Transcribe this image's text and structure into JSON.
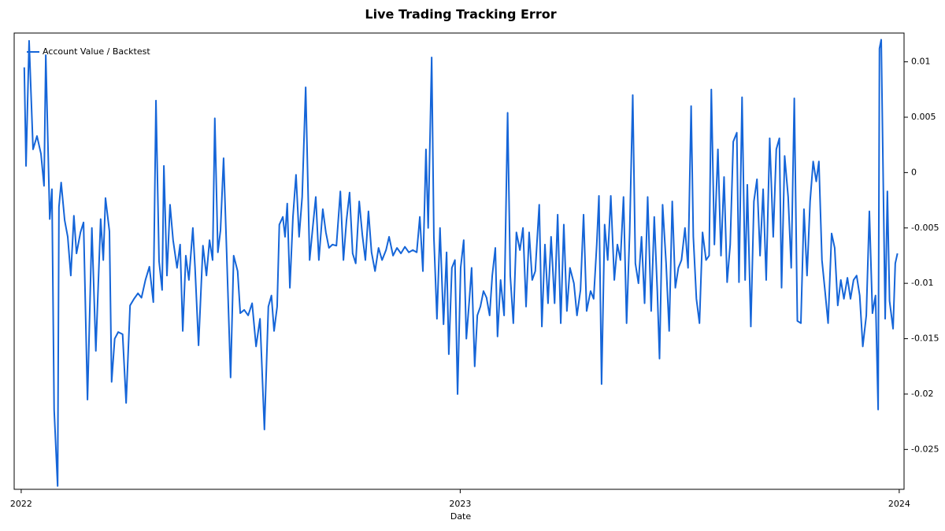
{
  "chart_data": {
    "type": "line",
    "title": "Live Trading Tracking Error",
    "xlabel": "Date",
    "x": [
      2022.007,
      2022.011,
      2022.018,
      2022.027,
      2022.036,
      2022.045,
      2022.052,
      2022.056,
      2022.065,
      2022.07,
      2022.075,
      2022.083,
      2022.086,
      2022.091,
      2022.099,
      2022.106,
      2022.113,
      2022.12,
      2022.126,
      2022.135,
      2022.142,
      2022.151,
      2022.161,
      2022.17,
      2022.181,
      2022.187,
      2022.192,
      2022.201,
      2022.206,
      2022.213,
      2022.221,
      2022.231,
      2022.239,
      2022.248,
      2022.257,
      2022.266,
      2022.274,
      2022.283,
      2022.292,
      2022.301,
      2022.307,
      2022.314,
      2022.321,
      2022.325,
      2022.332,
      2022.339,
      2022.346,
      2022.355,
      2022.362,
      2022.368,
      2022.375,
      2022.382,
      2022.391,
      2022.396,
      2022.404,
      2022.414,
      2022.422,
      2022.429,
      2022.436,
      2022.441,
      2022.448,
      2022.454,
      2022.461,
      2022.468,
      2022.477,
      2022.484,
      2022.493,
      2022.499,
      2022.508,
      2022.517,
      2022.526,
      2022.535,
      2022.544,
      2022.554,
      2022.563,
      2022.57,
      2022.576,
      2022.583,
      2022.588,
      2022.596,
      2022.601,
      2022.606,
      2022.612,
      2022.619,
      2022.626,
      2022.633,
      2022.64,
      2022.648,
      2022.657,
      2022.664,
      2022.671,
      2022.678,
      2022.687,
      2022.694,
      2022.701,
      2022.709,
      2022.718,
      2022.727,
      2022.734,
      2022.741,
      2022.748,
      2022.755,
      2022.762,
      2022.77,
      2022.777,
      2022.784,
      2022.791,
      2022.798,
      2022.806,
      2022.814,
      2022.822,
      2022.831,
      2022.838,
      2022.847,
      2022.856,
      2022.865,
      2022.874,
      2022.883,
      2022.892,
      2022.901,
      2022.908,
      2022.915,
      2022.922,
      2022.927,
      2022.935,
      2022.94,
      2022.947,
      2022.954,
      2022.962,
      2022.969,
      2022.974,
      2022.981,
      2022.988,
      2022.994,
      2023.001,
      2023.008,
      2023.014,
      2023.021,
      2023.026,
      2023.033,
      2023.039,
      2023.046,
      2023.053,
      2023.06,
      2023.067,
      2023.073,
      2023.08,
      2023.085,
      2023.092,
      2023.1,
      2023.108,
      2023.114,
      2023.121,
      2023.128,
      2023.136,
      2023.143,
      2023.15,
      2023.157,
      2023.164,
      2023.171,
      2023.18,
      2023.186,
      2023.193,
      2023.2,
      2023.207,
      2023.215,
      2023.222,
      2023.229,
      2023.236,
      2023.243,
      2023.25,
      2023.259,
      2023.266,
      2023.274,
      2023.281,
      2023.288,
      2023.297,
      2023.304,
      2023.311,
      2023.316,
      2023.322,
      2023.329,
      2023.336,
      2023.343,
      2023.351,
      2023.358,
      2023.365,
      2023.372,
      2023.379,
      2023.386,
      2023.393,
      2023.399,
      2023.406,
      2023.413,
      2023.42,
      2023.427,
      2023.435,
      2023.442,
      2023.449,
      2023.454,
      2023.461,
      2023.469,
      2023.476,
      2023.483,
      2023.49,
      2023.497,
      2023.504,
      2023.512,
      2023.519,
      2023.526,
      2023.531,
      2023.538,
      2023.545,
      2023.552,
      2023.56,
      2023.567,
      2023.572,
      2023.579,
      2023.587,
      2023.594,
      2023.601,
      2023.608,
      2023.615,
      2023.622,
      2023.63,
      2023.635,
      2023.642,
      2023.649,
      2023.654,
      2023.662,
      2023.669,
      2023.676,
      2023.683,
      2023.69,
      2023.697,
      2023.705,
      2023.713,
      2023.72,
      2023.727,
      2023.732,
      2023.739,
      2023.747,
      2023.754,
      2023.761,
      2023.768,
      2023.776,
      2023.783,
      2023.79,
      2023.797,
      2023.804,
      2023.811,
      2023.817,
      2023.824,
      2023.831,
      2023.838,
      2023.846,
      2023.853,
      2023.86,
      2023.867,
      2023.874,
      2023.882,
      2023.889,
      2023.896,
      2023.903,
      2023.91,
      2023.917,
      2023.925,
      2023.932,
      2023.939,
      2023.946,
      2023.952,
      2023.955,
      2023.959,
      2023.968,
      2023.973,
      2023.978,
      2023.986,
      2023.991,
      2023.996
    ],
    "series": [
      {
        "name": "Account Value / Backtest",
        "color": "#1565d8",
        "values": [
          0.0095,
          0.0006,
          0.0119,
          0.0021,
          0.0033,
          0.0017,
          -0.0012,
          0.0106,
          -0.0042,
          -0.0015,
          -0.0214,
          -0.0283,
          -0.0031,
          -0.0009,
          -0.0043,
          -0.0058,
          -0.0093,
          -0.0039,
          -0.0073,
          -0.0054,
          -0.0045,
          -0.0205,
          -0.005,
          -0.0161,
          -0.0042,
          -0.0079,
          -0.0023,
          -0.0053,
          -0.0189,
          -0.015,
          -0.0144,
          -0.0146,
          -0.0208,
          -0.012,
          -0.0114,
          -0.0109,
          -0.0113,
          -0.0097,
          -0.0085,
          -0.0117,
          0.0065,
          -0.008,
          -0.0106,
          0.0006,
          -0.0093,
          -0.0029,
          -0.0061,
          -0.0086,
          -0.0065,
          -0.0143,
          -0.0075,
          -0.0097,
          -0.005,
          -0.0086,
          -0.0156,
          -0.0066,
          -0.0093,
          -0.0061,
          -0.0079,
          0.0049,
          -0.0072,
          -0.0052,
          0.0013,
          -0.0072,
          -0.0185,
          -0.0075,
          -0.0089,
          -0.0127,
          -0.0124,
          -0.0129,
          -0.0118,
          -0.0157,
          -0.0132,
          -0.0232,
          -0.0121,
          -0.0111,
          -0.0143,
          -0.0121,
          -0.0047,
          -0.004,
          -0.0058,
          -0.0028,
          -0.0104,
          -0.004,
          -0.0002,
          -0.0058,
          -0.0022,
          0.0077,
          -0.0079,
          -0.005,
          -0.0022,
          -0.0079,
          -0.0033,
          -0.0054,
          -0.0068,
          -0.0065,
          -0.0066,
          -0.0017,
          -0.0079,
          -0.0043,
          -0.0018,
          -0.0073,
          -0.0082,
          -0.0026,
          -0.0056,
          -0.0079,
          -0.0035,
          -0.0072,
          -0.0089,
          -0.0068,
          -0.0079,
          -0.007,
          -0.0058,
          -0.0075,
          -0.0068,
          -0.0073,
          -0.0067,
          -0.0072,
          -0.007,
          -0.0072,
          -0.004,
          -0.0089,
          0.0021,
          -0.005,
          0.0104,
          -0.0058,
          -0.0132,
          -0.005,
          -0.0137,
          -0.0072,
          -0.0164,
          -0.0086,
          -0.0079,
          -0.02,
          -0.0086,
          -0.0061,
          -0.015,
          -0.0114,
          -0.0086,
          -0.0175,
          -0.0129,
          -0.0121,
          -0.0107,
          -0.0113,
          -0.0129,
          -0.0093,
          -0.0068,
          -0.0148,
          -0.0097,
          -0.0129,
          0.0054,
          -0.0093,
          -0.0136,
          -0.0054,
          -0.007,
          -0.005,
          -0.0121,
          -0.0054,
          -0.0097,
          -0.0089,
          -0.0029,
          -0.0139,
          -0.0065,
          -0.0118,
          -0.0058,
          -0.0118,
          -0.0038,
          -0.0136,
          -0.0047,
          -0.0125,
          -0.0086,
          -0.01,
          -0.0129,
          -0.0106,
          -0.0038,
          -0.0125,
          -0.0107,
          -0.0114,
          -0.0065,
          -0.0021,
          -0.0191,
          -0.0047,
          -0.0079,
          -0.0021,
          -0.0097,
          -0.0065,
          -0.0079,
          -0.0022,
          -0.0136,
          -0.0054,
          0.007,
          -0.0082,
          -0.01,
          -0.0058,
          -0.0118,
          -0.0022,
          -0.0125,
          -0.004,
          -0.0107,
          -0.0168,
          -0.0029,
          -0.0082,
          -0.0143,
          -0.0026,
          -0.0104,
          -0.0086,
          -0.0079,
          -0.005,
          -0.0086,
          0.006,
          -0.0058,
          -0.0114,
          -0.0136,
          -0.0054,
          -0.0079,
          -0.0075,
          0.0075,
          -0.0065,
          0.0021,
          -0.0075,
          -0.0004,
          -0.0099,
          -0.0065,
          0.0028,
          0.0036,
          -0.0099,
          0.0068,
          -0.0097,
          -0.0011,
          -0.0139,
          -0.0026,
          -0.0006,
          -0.0075,
          -0.0015,
          -0.0097,
          0.0031,
          -0.0058,
          0.0021,
          0.0031,
          -0.0104,
          0.0015,
          -0.0022,
          -0.0086,
          0.0067,
          -0.0134,
          -0.0136,
          -0.0033,
          -0.0093,
          -0.0026,
          0.001,
          -0.0008,
          0.001,
          -0.0079,
          -0.0107,
          -0.0136,
          -0.0055,
          -0.0068,
          -0.012,
          -0.0097,
          -0.0114,
          -0.0095,
          -0.0114,
          -0.0097,
          -0.0093,
          -0.0111,
          -0.0157,
          -0.0129,
          -0.0035,
          -0.0127,
          -0.0111,
          -0.0214,
          0.0112,
          0.012,
          -0.0132,
          -0.0017,
          -0.0116,
          -0.0141,
          -0.0082,
          -0.0073
        ]
      }
    ],
    "xlim": [
      2021.984,
      2024.011
    ],
    "xticks": [
      2022,
      2023,
      2024
    ],
    "ylim": [
      -0.0286,
      0.0126
    ],
    "yticks": [
      -0.025,
      -0.02,
      -0.015,
      -0.01,
      -0.005,
      0,
      0.005,
      0.01
    ],
    "legend": "upper left",
    "grid": false
  }
}
